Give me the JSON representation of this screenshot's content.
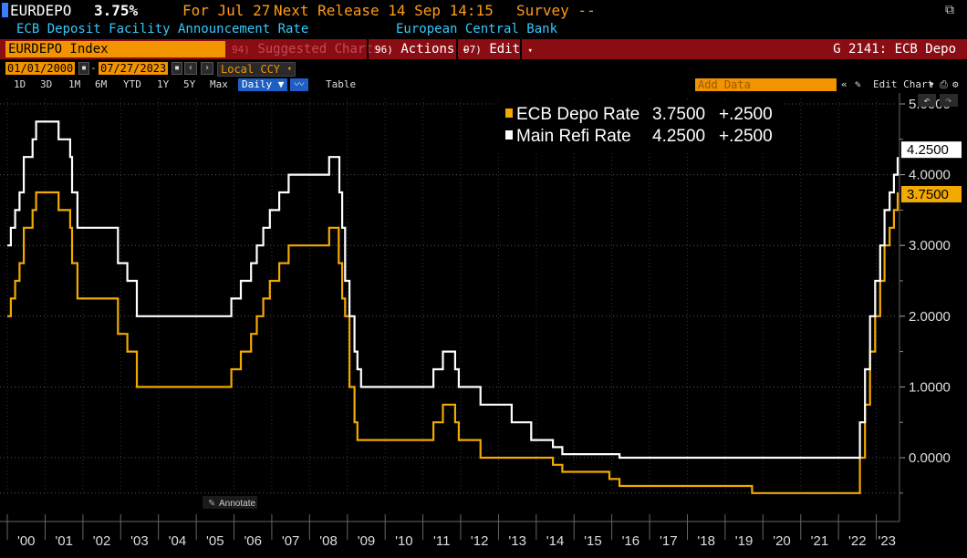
{
  "header": {
    "ticker": "EURDEPO",
    "value": "3.75%",
    "for_date": "For Jul 27",
    "next_release": "Next Release 14 Sep 14:15",
    "survey": "Survey --",
    "description": "ECB Deposit Facility Announcement Rate",
    "source": "European Central Bank"
  },
  "toolbar": {
    "index_name": "EURDEPO Index",
    "suggested_num": "94)",
    "suggested": "Suggested Charts",
    "actions_num": "96)",
    "actions": "Actions",
    "edit_num": "97)",
    "edit": "Edit",
    "page_id": "G 2141: ECB Depo"
  },
  "date_controls": {
    "start_date": "01/01/2000",
    "end_date": "07/27/2023",
    "currency": "Local CCY"
  },
  "range_buttons": [
    "1D",
    "3D",
    "1M",
    "6M",
    "YTD",
    "1Y",
    "5Y",
    "Max"
  ],
  "frequency": "Daily ▼",
  "table_label": "Table",
  "add_data_placeholder": "Add Data",
  "edit_chart": "Edit Chart",
  "annotate": "Annotate",
  "colors": {
    "depo": "#f2a900",
    "refi": "#ffffff",
    "toolbar_red": "#8b0d14",
    "orange": "#ff9b1a",
    "cyan": "#33c9ff"
  },
  "chart_data": {
    "type": "line",
    "ylim": [
      -0.6,
      5.1
    ],
    "xlim": [
      "2000-01-01",
      "2023-07-27"
    ],
    "y_ticks": [
      "5.0000",
      "4.0000",
      "3.0000",
      "2.0000",
      "1.0000",
      "0.0000"
    ],
    "x_ticks": [
      "'00",
      "'01",
      "'02",
      "'03",
      "'04",
      "'05",
      "'06",
      "'07",
      "'08",
      "'09",
      "'10",
      "'11",
      "'12",
      "'13",
      "'14",
      "'15",
      "'16",
      "'17",
      "'18",
      "'19",
      "'20",
      "'21",
      "'22",
      "'23"
    ],
    "legend_position": "top-right",
    "series": [
      {
        "name": "ECB Depo Rate",
        "legend_value": "3.7500",
        "legend_change": "+.2500",
        "last_label": "3.7500",
        "steps": [
          [
            "2000-01-01",
            2.0
          ],
          [
            "2000-02-04",
            2.25
          ],
          [
            "2000-03-17",
            2.5
          ],
          [
            "2000-04-28",
            2.75
          ],
          [
            "2000-06-09",
            3.25
          ],
          [
            "2000-09-01",
            3.5
          ],
          [
            "2000-10-06",
            3.75
          ],
          [
            "2001-05-11",
            3.5
          ],
          [
            "2001-08-31",
            3.25
          ],
          [
            "2001-09-18",
            2.75
          ],
          [
            "2001-11-09",
            2.25
          ],
          [
            "2002-12-06",
            1.75
          ],
          [
            "2003-03-07",
            1.5
          ],
          [
            "2003-06-06",
            1.0
          ],
          [
            "2005-12-06",
            1.25
          ],
          [
            "2006-03-08",
            1.5
          ],
          [
            "2006-06-15",
            1.75
          ],
          [
            "2006-08-09",
            2.0
          ],
          [
            "2006-10-11",
            2.25
          ],
          [
            "2006-12-13",
            2.5
          ],
          [
            "2007-03-14",
            2.75
          ],
          [
            "2007-06-13",
            3.0
          ],
          [
            "2008-07-09",
            3.25
          ],
          [
            "2008-10-09",
            2.75
          ],
          [
            "2008-11-12",
            2.25
          ],
          [
            "2008-12-10",
            2.0
          ],
          [
            "2009-01-21",
            1.0
          ],
          [
            "2009-03-11",
            0.5
          ],
          [
            "2009-04-08",
            0.25
          ],
          [
            "2011-04-13",
            0.5
          ],
          [
            "2011-07-13",
            0.75
          ],
          [
            "2011-11-09",
            0.5
          ],
          [
            "2011-12-14",
            0.25
          ],
          [
            "2012-07-11",
            0.0
          ],
          [
            "2014-06-11",
            -0.1
          ],
          [
            "2014-09-10",
            -0.2
          ],
          [
            "2015-12-09",
            -0.3
          ],
          [
            "2016-03-16",
            -0.4
          ],
          [
            "2019-09-18",
            -0.5
          ],
          [
            "2022-07-27",
            0.0
          ],
          [
            "2022-09-14",
            0.75
          ],
          [
            "2022-11-02",
            1.5
          ],
          [
            "2022-12-21",
            2.0
          ],
          [
            "2023-02-08",
            2.5
          ],
          [
            "2023-03-22",
            3.0
          ],
          [
            "2023-05-10",
            3.25
          ],
          [
            "2023-06-21",
            3.5
          ],
          [
            "2023-07-27",
            3.75
          ]
        ]
      },
      {
        "name": "Main Refi Rate",
        "legend_value": "4.2500",
        "legend_change": "+.2500",
        "last_label": "4.2500",
        "steps": [
          [
            "2000-01-01",
            3.0
          ],
          [
            "2000-02-04",
            3.25
          ],
          [
            "2000-03-17",
            3.5
          ],
          [
            "2000-04-28",
            3.75
          ],
          [
            "2000-06-09",
            4.25
          ],
          [
            "2000-09-01",
            4.5
          ],
          [
            "2000-10-06",
            4.75
          ],
          [
            "2001-05-11",
            4.5
          ],
          [
            "2001-08-31",
            4.25
          ],
          [
            "2001-09-18",
            3.75
          ],
          [
            "2001-11-09",
            3.25
          ],
          [
            "2002-12-06",
            2.75
          ],
          [
            "2003-03-07",
            2.5
          ],
          [
            "2003-06-06",
            2.0
          ],
          [
            "2005-12-06",
            2.25
          ],
          [
            "2006-03-08",
            2.5
          ],
          [
            "2006-06-15",
            2.75
          ],
          [
            "2006-08-09",
            3.0
          ],
          [
            "2006-10-11",
            3.25
          ],
          [
            "2006-12-13",
            3.5
          ],
          [
            "2007-03-14",
            3.75
          ],
          [
            "2007-06-13",
            4.0
          ],
          [
            "2008-07-09",
            4.25
          ],
          [
            "2008-10-15",
            3.75
          ],
          [
            "2008-11-12",
            3.25
          ],
          [
            "2008-12-10",
            2.5
          ],
          [
            "2009-01-21",
            2.0
          ],
          [
            "2009-03-11",
            1.5
          ],
          [
            "2009-04-08",
            1.25
          ],
          [
            "2009-05-13",
            1.0
          ],
          [
            "2011-04-13",
            1.25
          ],
          [
            "2011-07-13",
            1.5
          ],
          [
            "2011-11-09",
            1.25
          ],
          [
            "2011-12-14",
            1.0
          ],
          [
            "2012-07-11",
            0.75
          ],
          [
            "2013-05-08",
            0.5
          ],
          [
            "2013-11-13",
            0.25
          ],
          [
            "2014-06-11",
            0.15
          ],
          [
            "2014-09-10",
            0.05
          ],
          [
            "2016-03-16",
            0.0
          ],
          [
            "2022-07-27",
            0.5
          ],
          [
            "2022-09-14",
            1.25
          ],
          [
            "2022-11-02",
            2.0
          ],
          [
            "2022-12-21",
            2.5
          ],
          [
            "2023-02-08",
            3.0
          ],
          [
            "2023-03-22",
            3.5
          ],
          [
            "2023-05-10",
            3.75
          ],
          [
            "2023-06-21",
            4.0
          ],
          [
            "2023-07-27",
            4.25
          ]
        ]
      }
    ]
  }
}
